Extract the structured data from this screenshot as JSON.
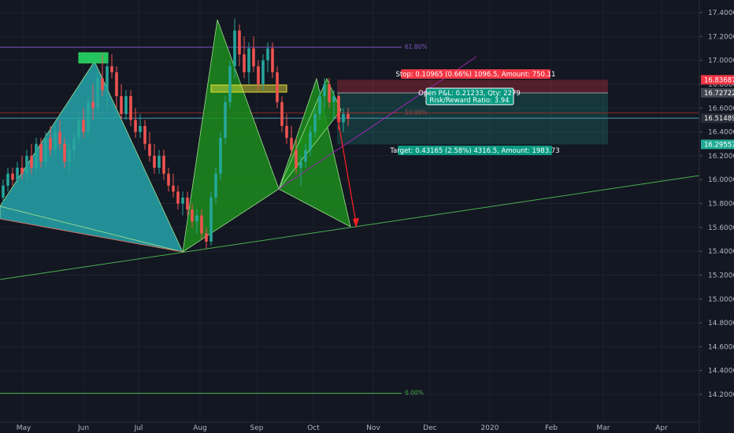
{
  "chart_data": {
    "type": "candlestick",
    "y_axis": {
      "min": 14.0,
      "max": 17.5,
      "ticks": [
        "17.40000",
        "17.20000",
        "17.00000",
        "16.80000",
        "16.60000",
        "16.40000",
        "16.20000",
        "16.00000",
        "15.80000",
        "15.60000",
        "15.40000",
        "15.20000",
        "15.00000",
        "14.80000",
        "14.60000",
        "14.40000",
        "14.20000"
      ]
    },
    "x_axis": {
      "labels": [
        "May",
        "Jun",
        "Jul",
        "Aug",
        "Sep",
        "Oct",
        "Nov",
        "Dec",
        "2020",
        "Feb",
        "Mar",
        "Apr"
      ]
    },
    "price_badges": [
      {
        "value": "16.83687",
        "y": 16.83687,
        "color": "#f23645"
      },
      {
        "value": "16.72722",
        "y": 16.72722,
        "color": "#434651"
      },
      {
        "value": "16.51489",
        "y": 16.51489,
        "color": "#2a2e39"
      },
      {
        "value": "16.29557",
        "y": 16.29557,
        "color": "#22ab94"
      }
    ],
    "position": {
      "stop_text": "Stop: 0.10965 (0.66%) 1096.5, Amount: 750.11",
      "pnl_text": "Open P&L: 0.21233, Qty: 2279",
      "rr_text": "Risk/Reward Ratio: 3.94",
      "target_text": "Target: 0.43165 (2.58%) 4316.5, Amount: 1983.73",
      "entry": 16.72722,
      "stop": 16.83687,
      "target": 16.29557,
      "current": 16.51489
    },
    "fib_levels": [
      {
        "label": "61.80%",
        "y": 17.11,
        "color": "#7e57c2"
      },
      {
        "label": "50.00%",
        "y": 16.56,
        "color": "#b23a3a"
      },
      {
        "label": "0.00%",
        "y": 14.21,
        "color": "#4caf50"
      }
    ],
    "candles": [
      [
        15.85,
        16.0,
        15.8,
        15.95
      ],
      [
        15.95,
        16.1,
        15.9,
        16.05
      ],
      [
        16.05,
        16.1,
        15.95,
        16.0
      ],
      [
        16.0,
        16.15,
        15.95,
        16.1
      ],
      [
        16.1,
        16.2,
        16.0,
        16.05
      ],
      [
        16.05,
        16.25,
        16.0,
        16.2
      ],
      [
        16.2,
        16.3,
        16.05,
        16.1
      ],
      [
        16.1,
        16.35,
        16.05,
        16.3
      ],
      [
        16.3,
        16.35,
        16.1,
        16.15
      ],
      [
        16.15,
        16.4,
        16.1,
        16.35
      ],
      [
        16.35,
        16.45,
        16.2,
        16.25
      ],
      [
        16.25,
        16.45,
        16.2,
        16.4
      ],
      [
        16.4,
        16.5,
        16.25,
        16.3
      ],
      [
        16.3,
        16.35,
        16.1,
        16.15
      ],
      [
        16.15,
        16.3,
        16.05,
        16.25
      ],
      [
        16.25,
        16.4,
        16.15,
        16.35
      ],
      [
        16.35,
        16.55,
        16.3,
        16.5
      ],
      [
        16.5,
        16.6,
        16.35,
        16.4
      ],
      [
        16.4,
        16.7,
        16.35,
        16.65
      ],
      [
        16.65,
        16.8,
        16.5,
        16.6
      ],
      [
        16.6,
        16.9,
        16.55,
        16.85
      ],
      [
        16.85,
        17.05,
        16.7,
        16.75
      ],
      [
        16.75,
        17.0,
        16.6,
        16.95
      ],
      [
        16.95,
        17.05,
        16.85,
        16.9
      ],
      [
        16.9,
        16.95,
        16.6,
        16.7
      ],
      [
        16.7,
        16.8,
        16.5,
        16.55
      ],
      [
        16.55,
        16.75,
        16.5,
        16.7
      ],
      [
        16.7,
        16.75,
        16.45,
        16.5
      ],
      [
        16.5,
        16.6,
        16.35,
        16.4
      ],
      [
        16.4,
        16.55,
        16.35,
        16.45
      ],
      [
        16.45,
        16.5,
        16.25,
        16.3
      ],
      [
        16.3,
        16.4,
        16.15,
        16.2
      ],
      [
        16.2,
        16.3,
        16.05,
        16.1
      ],
      [
        16.1,
        16.25,
        16.05,
        16.2
      ],
      [
        16.2,
        16.25,
        16.0,
        16.05
      ],
      [
        16.05,
        16.1,
        15.9,
        15.95
      ],
      [
        15.95,
        16.05,
        15.85,
        15.9
      ],
      [
        15.9,
        15.95,
        15.75,
        15.8
      ],
      [
        15.8,
        15.9,
        15.7,
        15.85
      ],
      [
        15.85,
        15.9,
        15.7,
        15.75
      ],
      [
        15.75,
        15.8,
        15.6,
        15.65
      ],
      [
        15.65,
        15.75,
        15.55,
        15.7
      ],
      [
        15.7,
        15.75,
        15.5,
        15.55
      ],
      [
        15.55,
        15.6,
        15.42,
        15.48
      ],
      [
        15.48,
        15.9,
        15.45,
        15.85
      ],
      [
        15.85,
        16.1,
        15.8,
        16.05
      ],
      [
        16.05,
        16.4,
        16.0,
        16.35
      ],
      [
        16.35,
        16.7,
        16.3,
        16.65
      ],
      [
        16.65,
        17.0,
        16.6,
        16.95
      ],
      [
        16.95,
        17.35,
        16.85,
        17.25
      ],
      [
        17.25,
        17.3,
        16.95,
        17.05
      ],
      [
        17.05,
        17.2,
        16.85,
        16.9
      ],
      [
        16.9,
        17.15,
        16.8,
        17.1
      ],
      [
        17.1,
        17.2,
        16.9,
        16.95
      ],
      [
        16.95,
        17.0,
        16.75,
        16.8
      ],
      [
        16.8,
        17.05,
        16.75,
        17.0
      ],
      [
        17.0,
        17.15,
        16.9,
        17.1
      ],
      [
        17.1,
        17.15,
        16.85,
        16.9
      ],
      [
        16.9,
        16.95,
        16.6,
        16.65
      ],
      [
        16.65,
        16.7,
        16.4,
        16.45
      ],
      [
        16.45,
        16.55,
        16.3,
        16.35
      ],
      [
        16.35,
        16.45,
        16.2,
        16.25
      ],
      [
        16.25,
        16.35,
        16.05,
        16.1
      ],
      [
        16.1,
        16.2,
        15.95,
        16.15
      ],
      [
        16.15,
        16.3,
        16.1,
        16.25
      ],
      [
        16.25,
        16.45,
        16.2,
        16.4
      ],
      [
        16.4,
        16.6,
        16.35,
        16.55
      ],
      [
        16.55,
        16.75,
        16.5,
        16.7
      ],
      [
        16.7,
        16.85,
        16.6,
        16.8
      ],
      [
        16.8,
        16.85,
        16.6,
        16.65
      ],
      [
        16.65,
        16.75,
        16.5,
        16.7
      ],
      [
        16.7,
        16.72,
        16.42,
        16.48
      ],
      [
        16.48,
        16.6,
        16.4,
        16.55
      ],
      [
        16.55,
        16.6,
        16.45,
        16.51
      ]
    ]
  }
}
